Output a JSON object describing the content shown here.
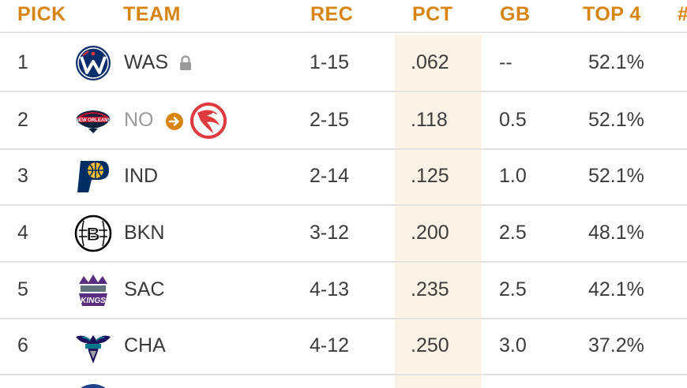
{
  "headers": {
    "pick": "PICK",
    "team": "TEAM",
    "rec": "REC",
    "pct": "PCT",
    "gb": "GB",
    "top4": "TOP 4",
    "extra": "#"
  },
  "colors": {
    "header_text": "#d88412",
    "pct_highlight": "#fdf2e6",
    "row_divider": "#e2e2e2",
    "trade_arrow": "#d88412",
    "hawks_red": "#e03a3e"
  },
  "rows": [
    {
      "pick": "1",
      "team": "WAS",
      "rec": "1-15",
      "pct": ".062",
      "gb": "--",
      "top4": "52.1%",
      "logo": "wizards-logo",
      "badge": "lock-icon"
    },
    {
      "pick": "2",
      "team": "NO",
      "rec": "2-15",
      "pct": ".118",
      "gb": "0.5",
      "top4": "52.1%",
      "logo": "pelicans-logo",
      "badge": "trade-arrow-icon",
      "traded_to_logo": "hawks-logo"
    },
    {
      "pick": "3",
      "team": "IND",
      "rec": "2-14",
      "pct": ".125",
      "gb": "1.0",
      "top4": "52.1%",
      "logo": "pacers-logo"
    },
    {
      "pick": "4",
      "team": "BKN",
      "rec": "3-12",
      "pct": ".200",
      "gb": "2.5",
      "top4": "48.1%",
      "logo": "nets-logo"
    },
    {
      "pick": "5",
      "team": "SAC",
      "rec": "4-13",
      "pct": ".235",
      "gb": "2.5",
      "top4": "42.1%",
      "logo": "kings-logo"
    },
    {
      "pick": "6",
      "team": "CHA",
      "rec": "4-12",
      "pct": ".250",
      "gb": "3.0",
      "top4": "37.2%",
      "logo": "hornets-logo"
    }
  ]
}
